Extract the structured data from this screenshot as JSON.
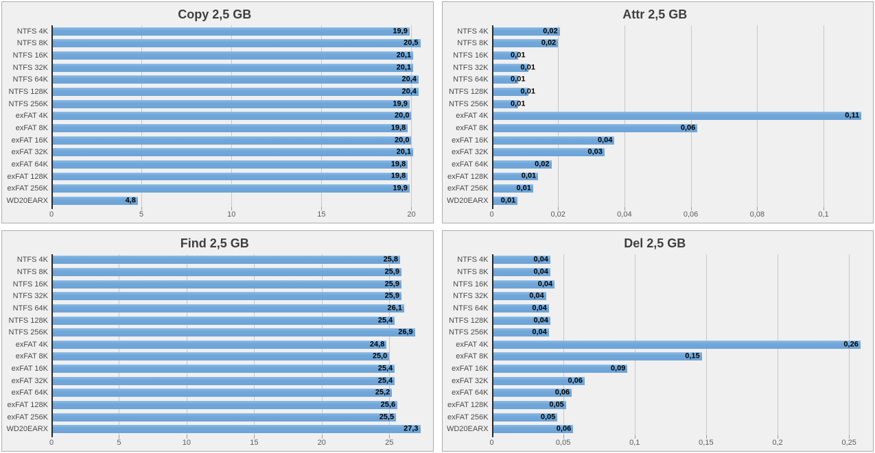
{
  "colors": {
    "page_background": "#ffffff",
    "panel_background": "#f0f0f0",
    "panel_border": "#ababab",
    "bar_fill": "#6ea4d7",
    "gridline": "#c6c6c6",
    "axis_line": "#262626",
    "title_text": "#3f3f3f",
    "tick_text": "#595959",
    "value_label_text": "#000000"
  },
  "chart_data": [
    {
      "type": "bar",
      "orientation": "horizontal",
      "title": "Copy 2,5 GB",
      "xlabel": "",
      "ylabel": "",
      "grid": true,
      "legend": "none",
      "xlim": [
        0,
        20.65
      ],
      "xmax": 20.65,
      "xticks": [
        {
          "label": "0",
          "value": 0
        },
        {
          "label": "5",
          "value": 5
        },
        {
          "label": "10",
          "value": 10
        },
        {
          "label": "15",
          "value": 15
        },
        {
          "label": "20",
          "value": 20
        }
      ],
      "bars": [
        {
          "category": "NTFS 4K",
          "value": 19.9,
          "label": "19,9",
          "bar": 19.9,
          "label_placement": "in"
        },
        {
          "category": "NTFS 8K",
          "value": 20.5,
          "label": "20,5",
          "bar": 20.5,
          "label_placement": "in"
        },
        {
          "category": "NTFS 16K",
          "value": 20.1,
          "label": "20,1",
          "bar": 20.1,
          "label_placement": "in"
        },
        {
          "category": "NTFS 32K",
          "value": 20.1,
          "label": "20,1",
          "bar": 20.1,
          "label_placement": "in"
        },
        {
          "category": "NTFS 64K",
          "value": 20.4,
          "label": "20,4",
          "bar": 20.4,
          "label_placement": "in"
        },
        {
          "category": "NTFS 128K",
          "value": 20.4,
          "label": "20,4",
          "bar": 20.4,
          "label_placement": "in"
        },
        {
          "category": "NTFS 256K",
          "value": 19.9,
          "label": "19,9",
          "bar": 19.9,
          "label_placement": "in"
        },
        {
          "category": "exFAT 4K",
          "value": 20.0,
          "label": "20,0",
          "bar": 20.0,
          "label_placement": "in"
        },
        {
          "category": "exFAT 8K",
          "value": 19.8,
          "label": "19,8",
          "bar": 19.8,
          "label_placement": "in"
        },
        {
          "category": "exFAT 16K",
          "value": 20.0,
          "label": "20,0",
          "bar": 20.0,
          "label_placement": "in"
        },
        {
          "category": "exFAT 32K",
          "value": 20.1,
          "label": "20,1",
          "bar": 20.1,
          "label_placement": "in"
        },
        {
          "category": "exFAT 64K",
          "value": 19.8,
          "label": "19,8",
          "bar": 19.8,
          "label_placement": "in"
        },
        {
          "category": "exFAT 128K",
          "value": 19.8,
          "label": "19,8",
          "bar": 19.8,
          "label_placement": "in"
        },
        {
          "category": "exFAT 256K",
          "value": 19.9,
          "label": "19,9",
          "bar": 19.9,
          "label_placement": "in"
        },
        {
          "category": "WD20EARX",
          "value": 4.8,
          "label": "4,8",
          "bar": 4.8,
          "label_placement": "in"
        }
      ]
    },
    {
      "type": "bar",
      "orientation": "horizontal",
      "title": "Attr 2,5 GB",
      "xlabel": "",
      "ylabel": "",
      "grid": true,
      "legend": "none",
      "xlim": [
        0,
        0.112
      ],
      "xmax": 0.112,
      "xticks": [
        {
          "label": "0",
          "value": 0
        },
        {
          "label": "0,02",
          "value": 0.02
        },
        {
          "label": "0,04",
          "value": 0.04
        },
        {
          "label": "0,06",
          "value": 0.06
        },
        {
          "label": "0,08",
          "value": 0.08
        },
        {
          "label": "0,1",
          "value": 0.1
        }
      ],
      "bars": [
        {
          "category": "NTFS 4K",
          "value": 0.02,
          "label": "0,02",
          "bar": 0.0205,
          "label_placement": "in"
        },
        {
          "category": "NTFS 8K",
          "value": 0.02,
          "label": "0,02",
          "bar": 0.02,
          "label_placement": "in"
        },
        {
          "category": "NTFS 16K",
          "value": 0.01,
          "label": "0,01",
          "bar": 0.008,
          "label_placement": "out"
        },
        {
          "category": "NTFS 32K",
          "value": 0.01,
          "label": "0,01",
          "bar": 0.011,
          "label_placement": "out"
        },
        {
          "category": "NTFS 64K",
          "value": 0.01,
          "label": "0,01",
          "bar": 0.008,
          "label_placement": "out"
        },
        {
          "category": "NTFS 128K",
          "value": 0.01,
          "label": "0,01",
          "bar": 0.011,
          "label_placement": "out"
        },
        {
          "category": "NTFS 256K",
          "value": 0.01,
          "label": "0,01",
          "bar": 0.008,
          "label_placement": "out"
        },
        {
          "category": "exFAT 4K",
          "value": 0.11,
          "label": "0,11",
          "bar": 0.1114,
          "label_placement": "in"
        },
        {
          "category": "exFAT 8K",
          "value": 0.06,
          "label": "0,06",
          "bar": 0.062,
          "label_placement": "in"
        },
        {
          "category": "exFAT 16K",
          "value": 0.04,
          "label": "0,04",
          "bar": 0.037,
          "label_placement": "in"
        },
        {
          "category": "exFAT 32K",
          "value": 0.03,
          "label": "0,03",
          "bar": 0.034,
          "label_placement": "in"
        },
        {
          "category": "exFAT 64K",
          "value": 0.02,
          "label": "0,02",
          "bar": 0.018,
          "label_placement": "in"
        },
        {
          "category": "exFAT 128K",
          "value": 0.01,
          "label": "0,01",
          "bar": 0.014,
          "label_placement": "in"
        },
        {
          "category": "exFAT 256K",
          "value": 0.01,
          "label": "0,01",
          "bar": 0.0125,
          "label_placement": "in"
        },
        {
          "category": "WD20EARX",
          "value": 0.01,
          "label": "0,01",
          "bar": 0.0078,
          "label_placement": "in"
        }
      ]
    },
    {
      "type": "bar",
      "orientation": "horizontal",
      "title": "Find 2,5 GB",
      "xlabel": "",
      "ylabel": "",
      "grid": true,
      "legend": "none",
      "xlim": [
        0,
        27.5
      ],
      "xmax": 27.5,
      "xticks": [
        {
          "label": "0",
          "value": 0
        },
        {
          "label": "5",
          "value": 5
        },
        {
          "label": "10",
          "value": 10
        },
        {
          "label": "15",
          "value": 15
        },
        {
          "label": "20",
          "value": 20
        },
        {
          "label": "25",
          "value": 25
        }
      ],
      "bars": [
        {
          "category": "NTFS 4K",
          "value": 25.8,
          "label": "25,8",
          "bar": 25.8,
          "label_placement": "in"
        },
        {
          "category": "NTFS 8K",
          "value": 25.9,
          "label": "25,9",
          "bar": 25.9,
          "label_placement": "in"
        },
        {
          "category": "NTFS 16K",
          "value": 25.9,
          "label": "25,9",
          "bar": 25.9,
          "label_placement": "in"
        },
        {
          "category": "NTFS 32K",
          "value": 25.9,
          "label": "25,9",
          "bar": 25.9,
          "label_placement": "in"
        },
        {
          "category": "NTFS 64K",
          "value": 26.1,
          "label": "26,1",
          "bar": 26.1,
          "label_placement": "in"
        },
        {
          "category": "NTFS 128K",
          "value": 25.4,
          "label": "25,4",
          "bar": 25.4,
          "label_placement": "in"
        },
        {
          "category": "NTFS 256K",
          "value": 26.9,
          "label": "26,9",
          "bar": 26.9,
          "label_placement": "in"
        },
        {
          "category": "exFAT 4K",
          "value": 24.8,
          "label": "24,8",
          "bar": 24.8,
          "label_placement": "in"
        },
        {
          "category": "exFAT 8K",
          "value": 25.0,
          "label": "25,0",
          "bar": 25.0,
          "label_placement": "in"
        },
        {
          "category": "exFAT 16K",
          "value": 25.4,
          "label": "25,4",
          "bar": 25.4,
          "label_placement": "in"
        },
        {
          "category": "exFAT 32K",
          "value": 25.4,
          "label": "25,4",
          "bar": 25.4,
          "label_placement": "in"
        },
        {
          "category": "exFAT 64K",
          "value": 25.2,
          "label": "25,2",
          "bar": 25.2,
          "label_placement": "in"
        },
        {
          "category": "exFAT 128K",
          "value": 25.6,
          "label": "25,6",
          "bar": 25.6,
          "label_placement": "in"
        },
        {
          "category": "exFAT 256K",
          "value": 25.5,
          "label": "25,5",
          "bar": 25.5,
          "label_placement": "in"
        },
        {
          "category": "WD20EARX",
          "value": 27.3,
          "label": "27,3",
          "bar": 27.3,
          "label_placement": "in"
        }
      ]
    },
    {
      "type": "bar",
      "orientation": "horizontal",
      "title": "Del 2,5 GB",
      "xlabel": "",
      "ylabel": "",
      "grid": true,
      "legend": "none",
      "xlim": [
        0,
        0.26
      ],
      "xmax": 0.26,
      "xticks": [
        {
          "label": "0",
          "value": 0
        },
        {
          "label": "0,05",
          "value": 0.05
        },
        {
          "label": "0,1",
          "value": 0.1
        },
        {
          "label": "0,15",
          "value": 0.15
        },
        {
          "label": "0,2",
          "value": 0.2
        },
        {
          "label": "0,25",
          "value": 0.25
        }
      ],
      "bars": [
        {
          "category": "NTFS 4K",
          "value": 0.04,
          "label": "0,04",
          "bar": 0.041,
          "label_placement": "in"
        },
        {
          "category": "NTFS 8K",
          "value": 0.04,
          "label": "0,04",
          "bar": 0.041,
          "label_placement": "in"
        },
        {
          "category": "NTFS 16K",
          "value": 0.04,
          "label": "0,04",
          "bar": 0.044,
          "label_placement": "in"
        },
        {
          "category": "NTFS 32K",
          "value": 0.04,
          "label": "0,04",
          "bar": 0.038,
          "label_placement": "in"
        },
        {
          "category": "NTFS 64K",
          "value": 0.04,
          "label": "0,04",
          "bar": 0.04,
          "label_placement": "in"
        },
        {
          "category": "NTFS 128K",
          "value": 0.04,
          "label": "0,04",
          "bar": 0.041,
          "label_placement": "in"
        },
        {
          "category": "NTFS 256K",
          "value": 0.04,
          "label": "0,04",
          "bar": 0.04,
          "label_placement": "in"
        },
        {
          "category": "exFAT 4K",
          "value": 0.26,
          "label": "0,26",
          "bar": 0.258,
          "label_placement": "in"
        },
        {
          "category": "exFAT 8K",
          "value": 0.15,
          "label": "0,15",
          "bar": 0.147,
          "label_placement": "in"
        },
        {
          "category": "exFAT 16K",
          "value": 0.09,
          "label": "0,09",
          "bar": 0.095,
          "label_placement": "in"
        },
        {
          "category": "exFAT 32K",
          "value": 0.06,
          "label": "0,06",
          "bar": 0.065,
          "label_placement": "in"
        },
        {
          "category": "exFAT 64K",
          "value": 0.06,
          "label": "0,06",
          "bar": 0.056,
          "label_placement": "in"
        },
        {
          "category": "exFAT 128K",
          "value": 0.05,
          "label": "0,05",
          "bar": 0.052,
          "label_placement": "in"
        },
        {
          "category": "exFAT 256K",
          "value": 0.05,
          "label": "0,05",
          "bar": 0.046,
          "label_placement": "in"
        },
        {
          "category": "WD20EARX",
          "value": 0.06,
          "label": "0,06",
          "bar": 0.057,
          "label_placement": "in"
        }
      ]
    }
  ]
}
